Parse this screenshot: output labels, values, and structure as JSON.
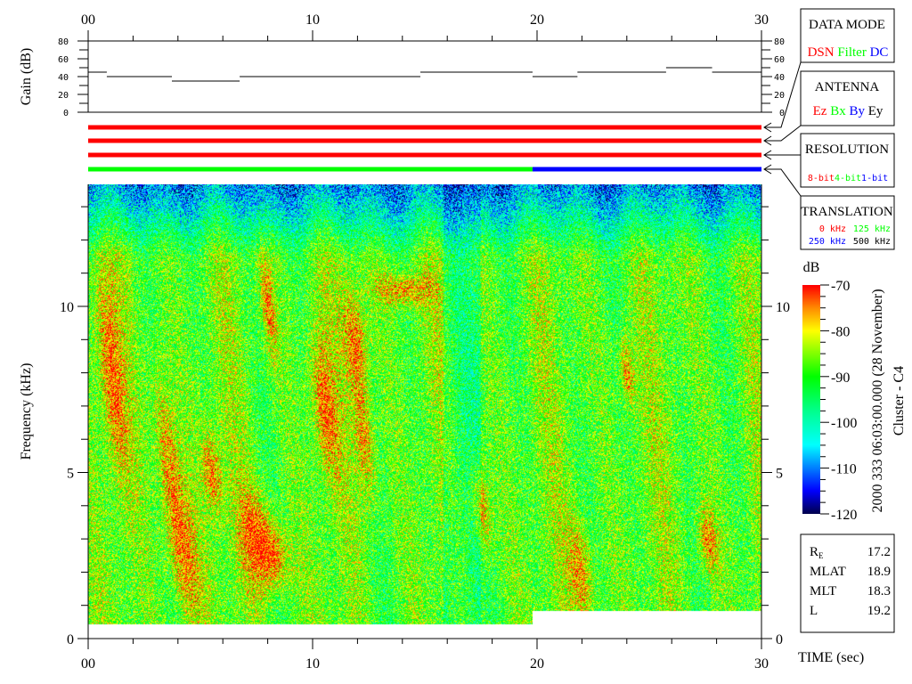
{
  "chart_data": [
    {
      "type": "line",
      "ylabel": "Gain (dB)",
      "ylim": [
        0,
        80
      ],
      "yticks": [
        "0",
        "20",
        "40",
        "60",
        "80"
      ],
      "xlim": [
        0,
        30
      ],
      "xticks": [
        "00",
        "10",
        "20",
        "30"
      ],
      "series": [
        {
          "steps": [
            {
              "t0": 0,
              "t1": 0.83,
              "gain": 45
            },
            {
              "t0": 0.83,
              "t1": 3.73,
              "gain": 40
            },
            {
              "t0": 3.73,
              "t1": 6.75,
              "gain": 35
            },
            {
              "t0": 6.75,
              "t1": 14.8,
              "gain": 40
            },
            {
              "t0": 14.8,
              "t1": 19.8,
              "gain": 45
            },
            {
              "t0": 19.8,
              "t1": 21.8,
              "gain": 40
            },
            {
              "t0": 21.8,
              "t1": 25.75,
              "gain": 45
            },
            {
              "t0": 25.75,
              "t1": 27.8,
              "gain": 50
            },
            {
              "t0": 27.8,
              "t1": 30,
              "gain": 45
            }
          ]
        }
      ]
    },
    {
      "type": "heatmap",
      "xlabel": "TIME (sec)",
      "ylabel": "Frequency (kHz)",
      "xlim": [
        0,
        30
      ],
      "ylim": [
        0,
        13.7
      ],
      "xticks": [
        "00",
        "10",
        "20",
        "30"
      ],
      "yticks": [
        "0",
        "5",
        "10"
      ],
      "low_cutoff_khz": [
        {
          "t0": 0,
          "t1": 19.8,
          "f": 0.45
        },
        {
          "t0": 19.8,
          "t1": 30,
          "f": 0.85
        }
      ],
      "colorbar": {
        "label": "dB",
        "range": [
          -120,
          -70
        ],
        "ticks": [
          "-70",
          "-80",
          "-90",
          "-100",
          "-110",
          "-120"
        ]
      }
    }
  ],
  "status_bars": [
    {
      "box": "DATA MODE",
      "segments": [
        {
          "t0": 0,
          "t1": 30,
          "value": "DSN",
          "color": "#ff0000"
        }
      ]
    },
    {
      "box": "ANTENNA",
      "segments": [
        {
          "t0": 0,
          "t1": 30,
          "value": "Ez",
          "color": "#ff0000"
        }
      ]
    },
    {
      "box": "RESOLUTION",
      "segments": [
        {
          "t0": 0,
          "t1": 30,
          "value": "8-bit",
          "color": "#ff0000"
        }
      ]
    },
    {
      "box": "TRANSLATION",
      "segments": [
        {
          "t0": 0,
          "t1": 19.8,
          "value": "125 kHz",
          "color": "#00ff00"
        },
        {
          "t0": 19.8,
          "t1": 30,
          "value": "250 kHz",
          "color": "#0000ff"
        }
      ]
    }
  ],
  "legend_boxes": {
    "data_mode": {
      "title": "DATA MODE",
      "items": [
        {
          "text": "DSN",
          "color": "#ff0000"
        },
        {
          "text": "Filter",
          "color": "#00ff00"
        },
        {
          "text": "DC",
          "color": "#0000ff"
        }
      ]
    },
    "antenna": {
      "title": "ANTENNA",
      "items": [
        {
          "text": "Ez",
          "color": "#ff0000"
        },
        {
          "text": "Bx",
          "color": "#00ff00"
        },
        {
          "text": "By",
          "color": "#0000ff"
        },
        {
          "text": "Ey",
          "color": "#000000"
        }
      ]
    },
    "resolution": {
      "title": "RESOLUTION",
      "items": [
        {
          "text": "8-bit",
          "color": "#ff0000"
        },
        {
          "text": "4-bit",
          "color": "#00ff00"
        },
        {
          "text": "1-bit",
          "color": "#0000ff"
        }
      ]
    },
    "translation": {
      "title": "TRANSLATION",
      "items": [
        {
          "text": "0 kHz",
          "color": "#ff0000"
        },
        {
          "text": "125 kHz",
          "color": "#00ff00"
        },
        {
          "text": "250 kHz",
          "color": "#0000ff"
        },
        {
          "text": "500 kHz",
          "color": "#000000"
        }
      ]
    }
  },
  "timestamp": "2000 333 06:03:00.000 (28 November)",
  "spacecraft": "Cluster - C4",
  "orbit_info": [
    {
      "label": "R",
      "sub": "E",
      "value": "17.2"
    },
    {
      "label": "MLAT",
      "sub": "",
      "value": "18.9"
    },
    {
      "label": "MLT",
      "sub": "",
      "value": "18.3"
    },
    {
      "label": "L",
      "sub": "",
      "value": "19.2"
    }
  ]
}
